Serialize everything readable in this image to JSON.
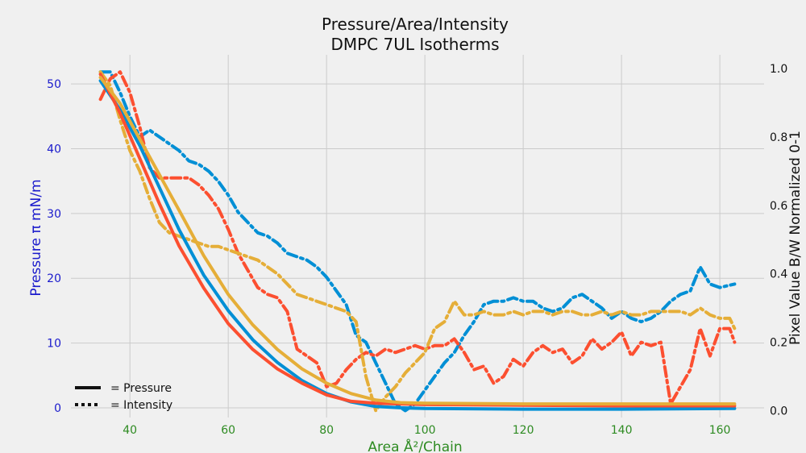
{
  "chart_data": {
    "type": "line",
    "title": "Pressure/Area/Intensity",
    "subtitle": "DMPC 7UL Isotherms",
    "xlabel": "Area Å²/Chain",
    "ylabel_left": "Pressure π mN/m",
    "ylabel_right": "Pixel Value B/W Normalized 0-1",
    "xlim": [
      28,
      169
    ],
    "ylim_left": [
      -1.5,
      54.5
    ],
    "ylim_right": [
      -0.02,
      1.04
    ],
    "x_ticks": [
      "40",
      "60",
      "80",
      "100",
      "120",
      "140",
      "160"
    ],
    "y_left_ticks": [
      "0",
      "10",
      "20",
      "30",
      "40",
      "50"
    ],
    "y_right_ticks": [
      "0.0",
      "0.2",
      "0.4",
      "0.6",
      "0.8",
      "1.0"
    ],
    "grid": true,
    "legend_position": "bottom-left",
    "legend": [
      {
        "style": "solid",
        "label": "= Pressure"
      },
      {
        "style": "dotted",
        "label": "= Intensity"
      }
    ],
    "colors": [
      "#008fd5",
      "#fc4f30",
      "#e5ae38"
    ],
    "series": [
      {
        "kind": "pressure",
        "color": "#008fd5",
        "x": [
          34,
          38,
          42,
          46,
          50,
          55,
          60,
          65,
          70,
          75,
          80,
          85,
          90,
          95,
          100,
          120,
          140,
          163
        ],
        "y": [
          50.5,
          46,
          40.5,
          34,
          27.5,
          20.5,
          15,
          10.5,
          7,
          4.2,
          2.2,
          0.9,
          0.2,
          0.0,
          -0.1,
          -0.2,
          -0.2,
          -0.1
        ]
      },
      {
        "kind": "pressure",
        "color": "#fc4f30",
        "x": [
          34,
          38,
          42,
          46,
          50,
          55,
          60,
          65,
          70,
          75,
          80,
          85,
          90,
          95,
          100,
          120,
          140,
          163
        ],
        "y": [
          51.5,
          45.5,
          38.5,
          31.5,
          25,
          18.5,
          13,
          9,
          6,
          3.8,
          2,
          1,
          0.7,
          0.6,
          0.5,
          0.4,
          0.3,
          0.3
        ]
      },
      {
        "kind": "pressure",
        "color": "#e5ae38",
        "x": [
          34,
          38,
          42,
          46,
          50,
          55,
          60,
          65,
          70,
          75,
          80,
          85,
          90,
          95,
          100,
          120,
          140,
          163
        ],
        "y": [
          51,
          47,
          41.5,
          36,
          30.5,
          23.5,
          17.5,
          12.8,
          9,
          6,
          3.8,
          2.2,
          1.2,
          0.8,
          0.7,
          0.6,
          0.6,
          0.6
        ]
      },
      {
        "kind": "intensity",
        "color": "#008fd5",
        "x": [
          34,
          36,
          38,
          40,
          42,
          44,
          46,
          48,
          50,
          52,
          54,
          56,
          58,
          60,
          62,
          64,
          66,
          68,
          70,
          72,
          74,
          76,
          78,
          80,
          82,
          84,
          86,
          88,
          90,
          92,
          94,
          96,
          98,
          100,
          102,
          104,
          106,
          108,
          110,
          112,
          114,
          116,
          118,
          120,
          122,
          124,
          126,
          128,
          130,
          132,
          134,
          136,
          138,
          140,
          142,
          144,
          146,
          148,
          150,
          152,
          154,
          156,
          158,
          160,
          163
        ],
        "y": [
          0.99,
          0.99,
          0.93,
          0.86,
          0.8,
          0.82,
          0.8,
          0.78,
          0.76,
          0.73,
          0.72,
          0.7,
          0.67,
          0.63,
          0.58,
          0.55,
          0.52,
          0.51,
          0.49,
          0.46,
          0.45,
          0.44,
          0.42,
          0.39,
          0.35,
          0.31,
          0.22,
          0.2,
          0.14,
          0.08,
          0.02,
          0.0,
          0.02,
          0.06,
          0.1,
          0.14,
          0.17,
          0.22,
          0.26,
          0.31,
          0.32,
          0.32,
          0.33,
          0.32,
          0.32,
          0.3,
          0.29,
          0.3,
          0.33,
          0.34,
          0.32,
          0.3,
          0.27,
          0.29,
          0.27,
          0.26,
          0.27,
          0.29,
          0.32,
          0.34,
          0.35,
          0.42,
          0.37,
          0.36,
          0.37
        ]
      },
      {
        "kind": "intensity",
        "color": "#fc4f30",
        "x": [
          34,
          36,
          38,
          40,
          42,
          44,
          46,
          48,
          50,
          52,
          54,
          56,
          58,
          60,
          62,
          64,
          66,
          68,
          70,
          72,
          74,
          76,
          78,
          80,
          82,
          84,
          86,
          88,
          90,
          92,
          94,
          96,
          98,
          100,
          102,
          104,
          106,
          108,
          110,
          112,
          114,
          116,
          118,
          120,
          122,
          124,
          126,
          128,
          130,
          132,
          134,
          136,
          138,
          140,
          142,
          144,
          146,
          148,
          150,
          152,
          154,
          156,
          158,
          160,
          162,
          163
        ],
        "y": [
          0.91,
          0.97,
          0.99,
          0.93,
          0.83,
          0.71,
          0.68,
          0.68,
          0.68,
          0.68,
          0.66,
          0.63,
          0.59,
          0.53,
          0.46,
          0.41,
          0.36,
          0.34,
          0.33,
          0.29,
          0.18,
          0.16,
          0.14,
          0.07,
          0.08,
          0.12,
          0.15,
          0.17,
          0.16,
          0.18,
          0.17,
          0.18,
          0.19,
          0.18,
          0.19,
          0.19,
          0.21,
          0.17,
          0.12,
          0.13,
          0.08,
          0.1,
          0.15,
          0.13,
          0.17,
          0.19,
          0.17,
          0.18,
          0.14,
          0.16,
          0.21,
          0.18,
          0.2,
          0.23,
          0.16,
          0.2,
          0.19,
          0.2,
          0.02,
          0.07,
          0.12,
          0.24,
          0.16,
          0.24,
          0.24,
          0.2
        ]
      },
      {
        "kind": "intensity",
        "color": "#e5ae38",
        "x": [
          34,
          36,
          38,
          40,
          42,
          44,
          46,
          48,
          50,
          52,
          54,
          56,
          58,
          60,
          62,
          64,
          66,
          68,
          70,
          72,
          74,
          76,
          78,
          80,
          82,
          84,
          86,
          88,
          90,
          92,
          94,
          96,
          98,
          100,
          102,
          104,
          106,
          108,
          110,
          112,
          114,
          116,
          118,
          120,
          122,
          124,
          126,
          128,
          130,
          132,
          134,
          136,
          138,
          140,
          142,
          144,
          146,
          148,
          150,
          152,
          154,
          156,
          158,
          160,
          162,
          163
        ],
        "y": [
          0.99,
          0.95,
          0.85,
          0.76,
          0.7,
          0.62,
          0.55,
          0.52,
          0.51,
          0.5,
          0.49,
          0.48,
          0.48,
          0.47,
          0.46,
          0.45,
          0.44,
          0.42,
          0.4,
          0.37,
          0.34,
          0.33,
          0.32,
          0.31,
          0.3,
          0.29,
          0.26,
          0.1,
          0.0,
          0.04,
          0.07,
          0.11,
          0.14,
          0.17,
          0.24,
          0.26,
          0.32,
          0.28,
          0.28,
          0.29,
          0.28,
          0.28,
          0.29,
          0.28,
          0.29,
          0.29,
          0.28,
          0.29,
          0.29,
          0.28,
          0.28,
          0.29,
          0.28,
          0.29,
          0.28,
          0.28,
          0.29,
          0.29,
          0.29,
          0.29,
          0.28,
          0.3,
          0.28,
          0.27,
          0.27,
          0.24
        ]
      }
    ]
  }
}
